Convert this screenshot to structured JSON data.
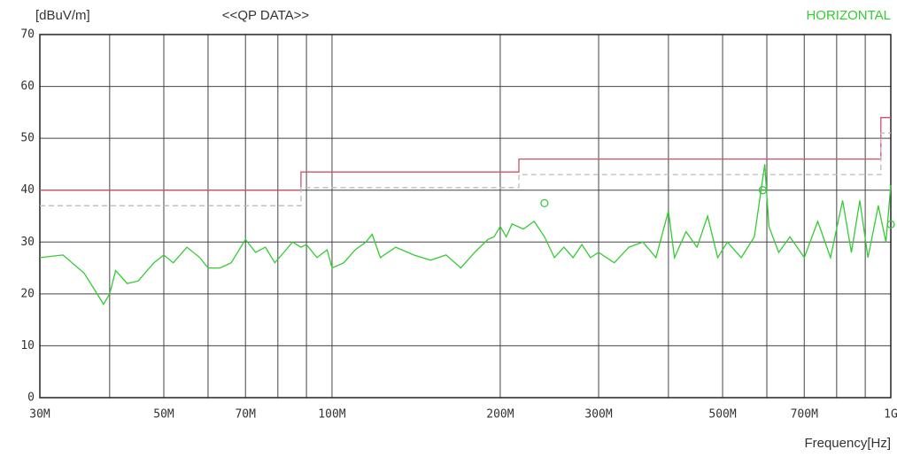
{
  "chart_data": {
    "type": "line",
    "title": "<<QP DATA>>",
    "y_label": "[dBuV/m]",
    "x_label": "Frequency[Hz]",
    "xlog": true,
    "grid": true,
    "xlim": [
      30000000,
      1000000000
    ],
    "ylim": [
      0,
      70
    ],
    "yticks": [
      0,
      10,
      20,
      30,
      40,
      50,
      60,
      70
    ],
    "xticks": [
      {
        "value": 30000000,
        "label": "30M"
      },
      {
        "value": 50000000,
        "label": "50M"
      },
      {
        "value": 70000000,
        "label": "70M"
      },
      {
        "value": 100000000,
        "label": "100M"
      },
      {
        "value": 200000000,
        "label": "200M"
      },
      {
        "value": 300000000,
        "label": "300M"
      },
      {
        "value": 500000000,
        "label": "500M"
      },
      {
        "value": 700000000,
        "label": "700M"
      },
      {
        "value": 1000000000,
        "label": "1G"
      }
    ],
    "x_minor_grid": [
      40000000,
      60000000,
      80000000,
      90000000,
      400000000,
      600000000,
      800000000,
      900000000
    ],
    "series": [
      {
        "color": "#d0506a",
        "dashed": false,
        "x": [
          30000000,
          88000000,
          88000000,
          216000000,
          216000000,
          960000000,
          960000000,
          1000000000
        ],
        "values": [
          40,
          40,
          43.5,
          43.5,
          46,
          46,
          54,
          54
        ]
      },
      {
        "color": "#bbbbbb",
        "dashed": true,
        "x": [
          30000000,
          88000000,
          88000000,
          216000000,
          216000000,
          960000000,
          960000000,
          1000000000
        ],
        "values": [
          37,
          37,
          40.5,
          40.5,
          43,
          43,
          51,
          51
        ]
      },
      {
        "name": "HORIZONTAL",
        "color": "#33cc33",
        "dashed": false,
        "x": [
          30000000,
          33000000,
          36000000,
          38000000,
          39000000,
          40000000,
          41000000,
          43000000,
          45000000,
          48000000,
          50000000,
          52000000,
          55000000,
          58000000,
          60000000,
          63000000,
          66000000,
          70000000,
          73000000,
          76000000,
          79000000,
          82000000,
          85000000,
          88000000,
          90000000,
          94000000,
          98000000,
          100000000,
          105000000,
          110000000,
          115000000,
          118000000,
          122000000,
          130000000,
          140000000,
          150000000,
          160000000,
          170000000,
          180000000,
          190000000,
          195000000,
          200000000,
          205000000,
          210000000,
          220000000,
          230000000,
          240000000,
          250000000,
          260000000,
          270000000,
          280000000,
          290000000,
          300000000,
          320000000,
          340000000,
          360000000,
          380000000,
          400000000,
          410000000,
          430000000,
          450000000,
          470000000,
          490000000,
          510000000,
          540000000,
          570000000,
          595000000,
          605000000,
          630000000,
          660000000,
          700000000,
          740000000,
          780000000,
          820000000,
          850000000,
          880000000,
          910000000,
          950000000,
          980000000,
          1000000000
        ],
        "values": [
          27,
          27.5,
          24,
          20,
          18,
          20,
          24.5,
          22,
          22.5,
          26,
          27.5,
          26,
          29,
          27,
          25,
          25,
          26,
          30.5,
          28,
          29,
          26,
          28,
          30,
          29,
          29.5,
          27,
          28.5,
          25,
          26,
          28.5,
          30,
          31.5,
          27,
          29,
          27.5,
          26.5,
          27.5,
          25,
          28,
          30.5,
          31,
          33,
          31,
          33.5,
          32.5,
          34,
          31,
          27,
          29,
          27,
          29.5,
          27,
          28,
          26,
          29,
          30,
          27,
          36,
          27,
          32,
          29,
          35,
          27,
          30,
          27,
          31,
          45,
          33,
          28,
          31,
          27,
          34,
          27,
          38,
          28,
          38,
          27,
          37,
          30,
          41
        ]
      }
    ],
    "markers": {
      "color": "#33cc33",
      "x": [
        240000000,
        590000000,
        1000000000
      ],
      "values": [
        37.5,
        40,
        33.4
      ]
    }
  }
}
